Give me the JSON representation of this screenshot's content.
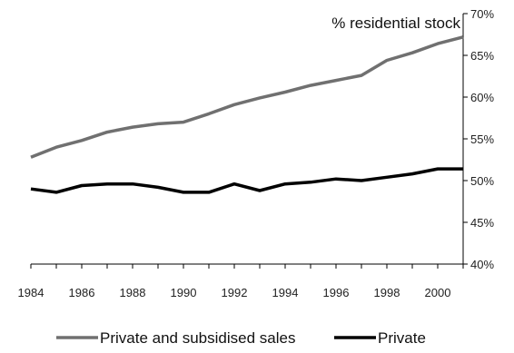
{
  "chart_data": {
    "type": "line",
    "title": "",
    "xlabel": "",
    "ylabel": "% residential stock",
    "x": [
      1984,
      1985,
      1986,
      1987,
      1988,
      1989,
      1990,
      1991,
      1992,
      1993,
      1994,
      1995,
      1996,
      1997,
      1998,
      1999,
      2000,
      2001
    ],
    "x_ticks": [
      "1984",
      "1986",
      "1988",
      "1990",
      "1992",
      "1994",
      "1996",
      "1998",
      "2000"
    ],
    "xlim": [
      1984,
      2001
    ],
    "ylim": [
      40,
      70
    ],
    "y_ticks": [
      "40%",
      "45%",
      "50%",
      "55%",
      "60%",
      "65%",
      "70%"
    ],
    "y_axis_side": "right",
    "grid": false,
    "legend_position": "bottom",
    "series": [
      {
        "name": "Private and subsidised sales",
        "color": "#707070",
        "values": [
          52.8,
          54.0,
          54.8,
          55.8,
          56.4,
          56.8,
          57.0,
          58.0,
          59.1,
          59.9,
          60.6,
          61.4,
          62.0,
          62.6,
          64.4,
          65.3,
          66.4,
          67.2
        ]
      },
      {
        "name": "Private",
        "color": "#000000",
        "values": [
          49.0,
          48.6,
          49.4,
          49.6,
          49.6,
          49.2,
          48.6,
          48.6,
          49.6,
          48.8,
          49.6,
          49.8,
          50.2,
          50.0,
          50.4,
          50.8,
          51.4,
          51.4
        ]
      }
    ]
  }
}
